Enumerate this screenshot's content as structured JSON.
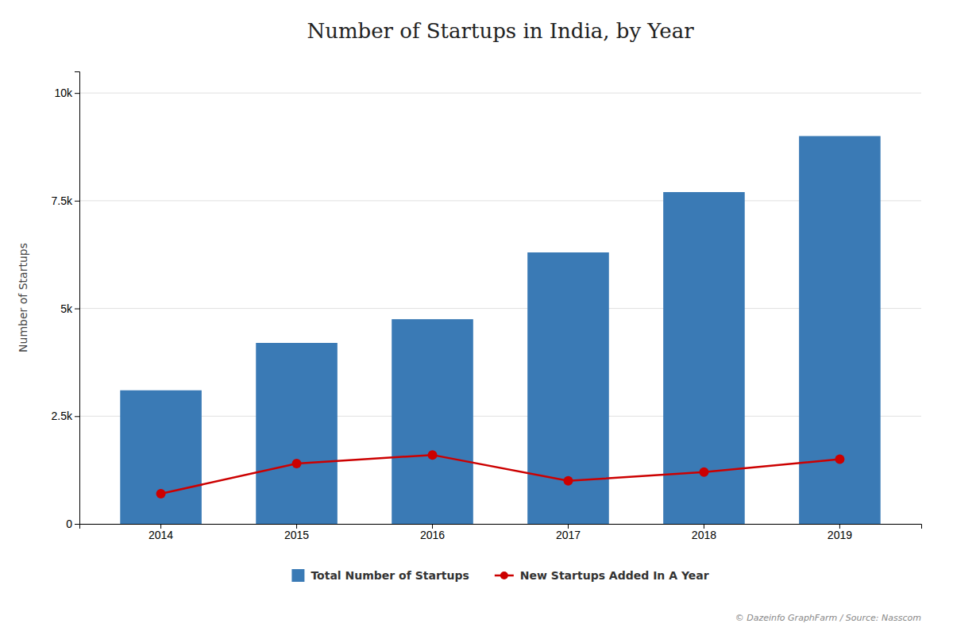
{
  "chart_data": {
    "type": "bar",
    "title": "Number of Startups in India, by Year",
    "ylabel": "Number of Startups",
    "categories": [
      "2014",
      "2015",
      "2016",
      "2017",
      "2018",
      "2019"
    ],
    "series": [
      {
        "name": "Total Number of Startups",
        "type": "bar",
        "color": "#3a7ab5",
        "values": [
          3100,
          4200,
          4750,
          6300,
          7700,
          9000
        ]
      },
      {
        "name": "New Startups Added In A Year",
        "type": "line",
        "color": "#cc0000",
        "marker": "circle",
        "values": [
          700,
          1400,
          1600,
          1000,
          1200,
          1500
        ]
      }
    ],
    "ylim": [
      0,
      10500
    ],
    "yticks": [
      0,
      {
        "value": 2500,
        "label": "2.5k"
      },
      {
        "value": 5000,
        "label": "5k"
      },
      {
        "value": 7500,
        "label": "7.5k"
      },
      {
        "value": 10000,
        "label": "10k"
      }
    ],
    "grid": true,
    "legend": "bottom",
    "annotations": [
      "© Dazeinfo GraphFarm / Source: Nasscom"
    ]
  }
}
